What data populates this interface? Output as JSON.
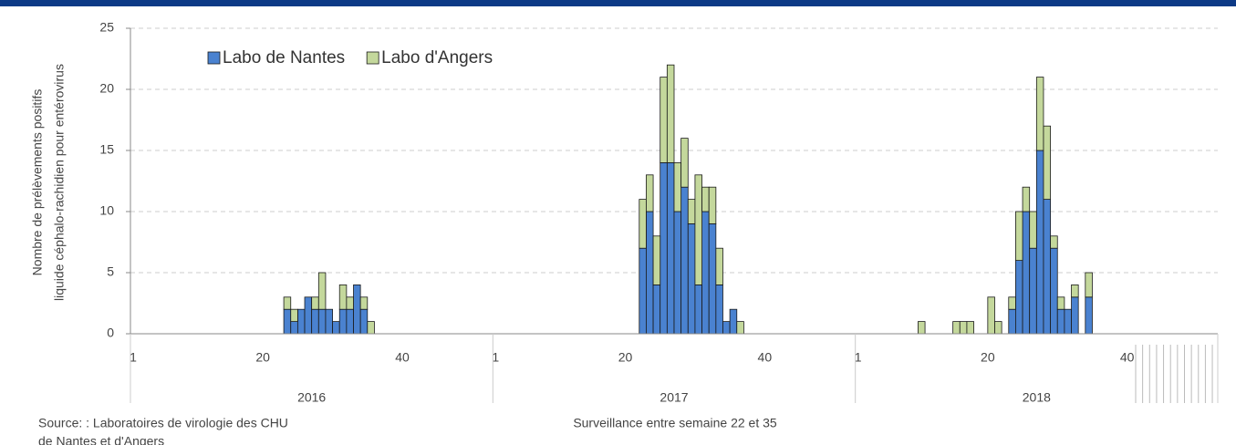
{
  "chart_data": {
    "type": "bar",
    "stacked": true,
    "ylabel": [
      "Nombre de prélèvements  positifs",
      "liquide céphalo-rachidien pour entérovirus"
    ],
    "xlabel": "Surveillance entre semaine 22 et 35",
    "source": [
      "Source: : Laboratoires de virologie des CHU",
      " de Nantes et d'Angers"
    ],
    "year_groups": [
      "2016",
      "2017",
      "2018"
    ],
    "categories": [
      "1",
      null,
      null,
      null,
      null,
      null,
      null,
      null,
      null,
      null,
      null,
      null,
      null,
      null,
      null,
      null,
      null,
      null,
      null,
      "20",
      null,
      null,
      null,
      null,
      null,
      null,
      null,
      null,
      null,
      null,
      null,
      null,
      null,
      null,
      null,
      null,
      null,
      null,
      null,
      "40",
      null,
      null,
      null,
      null,
      null,
      null,
      null,
      null,
      null,
      null,
      null,
      null,
      "1",
      null,
      null,
      null,
      null,
      null,
      null,
      null,
      null,
      null,
      null,
      null,
      null,
      null,
      null,
      null,
      null,
      null,
      null,
      "20",
      null,
      null,
      null,
      null,
      null,
      null,
      null,
      null,
      null,
      null,
      null,
      null,
      null,
      null,
      null,
      null,
      null,
      null,
      null,
      "40",
      null,
      null,
      null,
      null,
      null,
      null,
      null,
      null,
      null,
      null,
      null,
      null,
      "1",
      null,
      null,
      null,
      null,
      null,
      null,
      null,
      null,
      null,
      null,
      null,
      null,
      null,
      null,
      null,
      null,
      null,
      null,
      "20",
      null,
      null,
      null,
      null,
      null,
      null,
      null,
      null,
      null,
      null,
      null,
      null,
      null,
      null,
      null,
      null,
      null,
      null,
      null,
      "40",
      null,
      null,
      null,
      null,
      null,
      null,
      null,
      null,
      null,
      null,
      null,
      null
    ],
    "series": [
      {
        "name": "Labo de Nantes",
        "color": "#4a82d0",
        "values": [
          0,
          0,
          0,
          0,
          0,
          0,
          0,
          0,
          0,
          0,
          0,
          0,
          0,
          0,
          0,
          0,
          0,
          0,
          0,
          0,
          0,
          0,
          2,
          1,
          2,
          3,
          2,
          2,
          2,
          1,
          2,
          2,
          4,
          2,
          0,
          0,
          0,
          0,
          0,
          0,
          0,
          0,
          0,
          0,
          0,
          0,
          0,
          0,
          0,
          0,
          0,
          0,
          0,
          0,
          0,
          0,
          0,
          0,
          0,
          0,
          0,
          0,
          0,
          0,
          0,
          0,
          0,
          0,
          0,
          0,
          0,
          0,
          0,
          7,
          10,
          4,
          14,
          14,
          10,
          12,
          9,
          4,
          10,
          9,
          4,
          1,
          2,
          0,
          0,
          0,
          0,
          0,
          0,
          0,
          0,
          0,
          0,
          0,
          0,
          0,
          0,
          0,
          0,
          0,
          0,
          0,
          0,
          0,
          0,
          0,
          0,
          0,
          0,
          0,
          0,
          0,
          0,
          0,
          0,
          0,
          0,
          0,
          0,
          0,
          0,
          0,
          2,
          6,
          10,
          7,
          15,
          11,
          7,
          2,
          2,
          3,
          0,
          3,
          0,
          0,
          0,
          0,
          0,
          0,
          0,
          0,
          0,
          0,
          0,
          0,
          0,
          0,
          0,
          0,
          0,
          0
        ]
      },
      {
        "name": "Labo d'Angers",
        "color": "#c4d89c",
        "values": [
          0,
          0,
          0,
          0,
          0,
          0,
          0,
          0,
          0,
          0,
          0,
          0,
          0,
          0,
          0,
          0,
          0,
          0,
          0,
          0,
          0,
          0,
          1,
          1,
          0,
          0,
          1,
          3,
          0,
          0,
          2,
          1,
          0,
          1,
          1,
          0,
          0,
          0,
          0,
          0,
          0,
          0,
          0,
          0,
          0,
          0,
          0,
          0,
          0,
          0,
          0,
          0,
          0,
          0,
          0,
          0,
          0,
          0,
          0,
          0,
          0,
          0,
          0,
          0,
          0,
          0,
          0,
          0,
          0,
          0,
          0,
          0,
          0,
          4,
          3,
          4,
          7,
          8,
          4,
          4,
          2,
          9,
          2,
          3,
          3,
          0,
          0,
          1,
          0,
          0,
          0,
          0,
          0,
          0,
          0,
          0,
          0,
          0,
          0,
          0,
          0,
          0,
          0,
          0,
          0,
          0,
          0,
          0,
          0,
          0,
          0,
          0,
          0,
          1,
          0,
          0,
          0,
          0,
          1,
          1,
          1,
          0,
          0,
          3,
          1,
          0,
          1,
          4,
          2,
          3,
          6,
          6,
          1,
          1,
          0,
          1,
          0,
          2,
          0,
          0,
          0,
          0,
          0,
          0,
          0,
          0,
          0,
          0,
          0,
          0,
          0,
          0,
          0,
          0,
          0,
          0
        ]
      }
    ],
    "ylim": [
      0,
      25
    ],
    "yticks": [
      0,
      5,
      10,
      15,
      20,
      25
    ],
    "grid": true
  }
}
